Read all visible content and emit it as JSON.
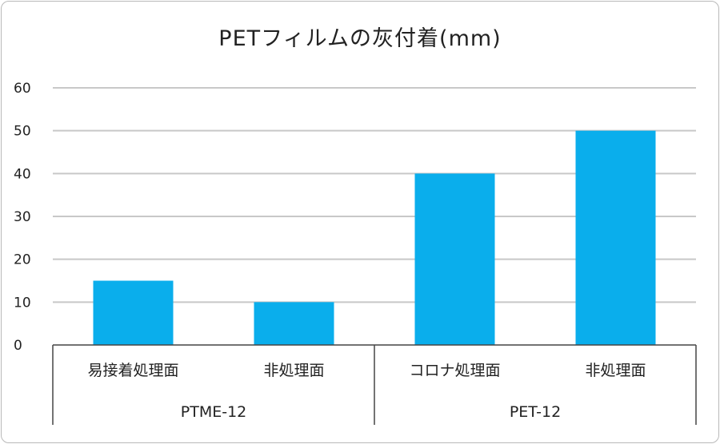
{
  "chart_data": {
    "type": "bar",
    "title": "PETフィルムの灰付着(mm)",
    "xlabel": "",
    "ylabel": "",
    "ylim": [
      0,
      60
    ],
    "yticks": [
      0,
      10,
      20,
      30,
      40,
      50,
      60
    ],
    "grid": true,
    "categories": [
      "易接着処理面",
      "非処理面",
      "コロナ処理面",
      "非処理面"
    ],
    "groups": [
      {
        "label": "PTME-12",
        "categories": [
          "易接着処理面",
          "非処理面"
        ]
      },
      {
        "label": "PET-12",
        "categories": [
          "コロナ処理面",
          "非処理面"
        ]
      }
    ],
    "values": [
      15,
      10,
      40,
      50
    ],
    "colors": {
      "bar": "#0aaeec",
      "grid": "#c8c8c8",
      "axis": "#444444"
    }
  }
}
